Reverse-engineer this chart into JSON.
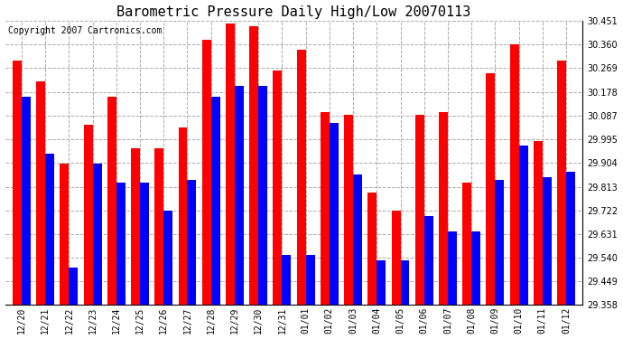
{
  "title": "Barometric Pressure Daily High/Low 20070113",
  "copyright": "Copyright 2007 Cartronics.com",
  "categories": [
    "12/20",
    "12/21",
    "12/22",
    "12/23",
    "12/24",
    "12/25",
    "12/26",
    "12/27",
    "12/28",
    "12/29",
    "12/30",
    "12/31",
    "01/01",
    "01/02",
    "01/03",
    "01/04",
    "01/05",
    "01/06",
    "01/07",
    "01/08",
    "01/09",
    "01/10",
    "01/11",
    "01/12"
  ],
  "highs": [
    30.3,
    30.22,
    29.9,
    30.05,
    30.16,
    29.96,
    29.96,
    30.04,
    30.38,
    30.44,
    30.43,
    30.26,
    30.34,
    30.1,
    30.09,
    29.79,
    29.72,
    30.09,
    30.1,
    29.83,
    30.25,
    30.36,
    29.99,
    30.3
  ],
  "lows": [
    30.16,
    29.94,
    29.5,
    29.9,
    29.83,
    29.83,
    29.72,
    29.84,
    30.16,
    30.2,
    30.2,
    29.55,
    29.55,
    30.06,
    29.86,
    29.53,
    29.53,
    29.7,
    29.64,
    29.64,
    29.84,
    29.97,
    29.85,
    29.87
  ],
  "ymin": 29.358,
  "ymax": 30.451,
  "yticks": [
    29.358,
    29.449,
    29.54,
    29.631,
    29.722,
    29.813,
    29.904,
    29.995,
    30.087,
    30.178,
    30.269,
    30.36,
    30.451
  ],
  "bar_width": 0.38,
  "high_color": "#FF0000",
  "low_color": "#0000FF",
  "bg_color": "#FFFFFF",
  "plot_bg_color": "#FFFFFF",
  "grid_color": "#AAAAAA",
  "title_fontsize": 11,
  "tick_fontsize": 7,
  "copyright_fontsize": 7
}
